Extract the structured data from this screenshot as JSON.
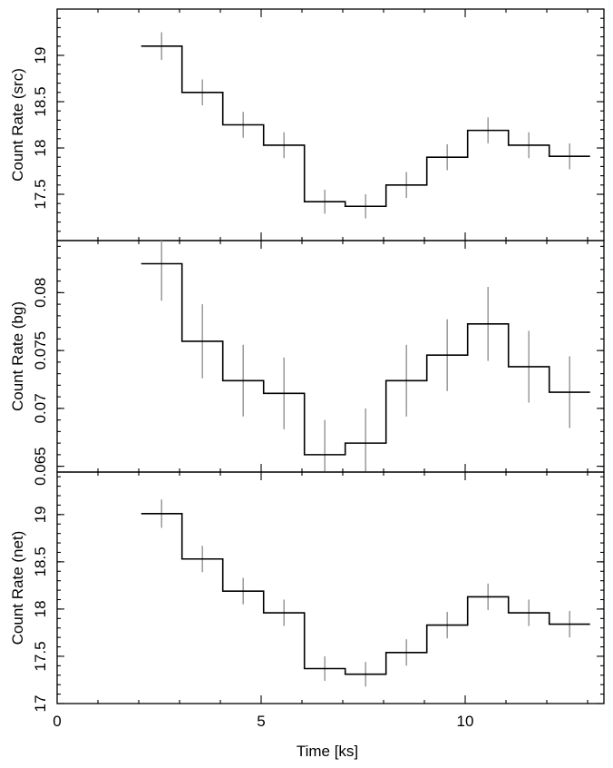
{
  "colors": {
    "step": "#000000",
    "error_bar": "#999999",
    "frame": "#000000",
    "background": "#ffffff"
  },
  "chart_data": [
    {
      "type": "line",
      "ylabel": "Count Rate (src)",
      "xlabel": "",
      "xlim": [
        0,
        13.4
      ],
      "ylim": [
        17.0,
        19.5
      ],
      "y_major_ticks": [
        17.5,
        18,
        18.5,
        19
      ],
      "y_tick_labels": [
        "17.5",
        "18",
        "18.5",
        "19"
      ],
      "y_minor_step": 0.1,
      "x": [
        2.56,
        3.56,
        4.56,
        5.56,
        6.56,
        7.56,
        8.56,
        9.56,
        10.56,
        11.56,
        12.56
      ],
      "bin_halfwidth": 0.5,
      "values": [
        19.1,
        18.6,
        18.25,
        18.03,
        17.42,
        17.37,
        17.6,
        17.9,
        18.19,
        18.03,
        17.91
      ],
      "errors": [
        0.15,
        0.14,
        0.14,
        0.14,
        0.13,
        0.13,
        0.14,
        0.14,
        0.14,
        0.14,
        0.14
      ]
    },
    {
      "type": "line",
      "ylabel": "Count Rate (bg)",
      "xlabel": "",
      "xlim": [
        0,
        13.4
      ],
      "ylim": [
        0.0645,
        0.0845
      ],
      "y_major_ticks": [
        0.065,
        0.07,
        0.075,
        0.08
      ],
      "y_tick_labels": [
        "0.065",
        "0.07",
        "0.075",
        "0.08"
      ],
      "y_minor_step": 0.001,
      "x": [
        2.56,
        3.56,
        4.56,
        5.56,
        6.56,
        7.56,
        8.56,
        9.56,
        10.56,
        11.56,
        12.56
      ],
      "bin_halfwidth": 0.5,
      "values": [
        0.0825,
        0.0758,
        0.0724,
        0.0713,
        0.066,
        0.067,
        0.0724,
        0.0746,
        0.0773,
        0.0736,
        0.0714
      ],
      "errors": [
        0.0032,
        0.0032,
        0.0031,
        0.0031,
        0.003,
        0.003,
        0.0031,
        0.0031,
        0.0032,
        0.0031,
        0.0031
      ]
    },
    {
      "type": "line",
      "ylabel": "Count Rate (net)",
      "xlabel": "Time [ks]",
      "xlim": [
        0,
        13.4
      ],
      "ylim": [
        17.0,
        19.45
      ],
      "y_major_ticks": [
        17,
        17.5,
        18,
        18.5,
        19
      ],
      "y_tick_labels": [
        "17",
        "17.5",
        "18",
        "18.5",
        "19"
      ],
      "y_minor_step": 0.1,
      "x": [
        2.56,
        3.56,
        4.56,
        5.56,
        6.56,
        7.56,
        8.56,
        9.56,
        10.56,
        11.56,
        12.56
      ],
      "bin_halfwidth": 0.5,
      "values": [
        19.01,
        18.53,
        18.19,
        17.96,
        17.37,
        17.31,
        17.54,
        17.83,
        18.13,
        17.96,
        17.84
      ],
      "errors": [
        0.15,
        0.14,
        0.14,
        0.14,
        0.13,
        0.13,
        0.14,
        0.14,
        0.14,
        0.14,
        0.14
      ],
      "x_major_ticks": [
        0,
        5,
        10
      ],
      "x_tick_labels": [
        "0",
        "5",
        "10"
      ],
      "x_minor_step": 1
    }
  ]
}
